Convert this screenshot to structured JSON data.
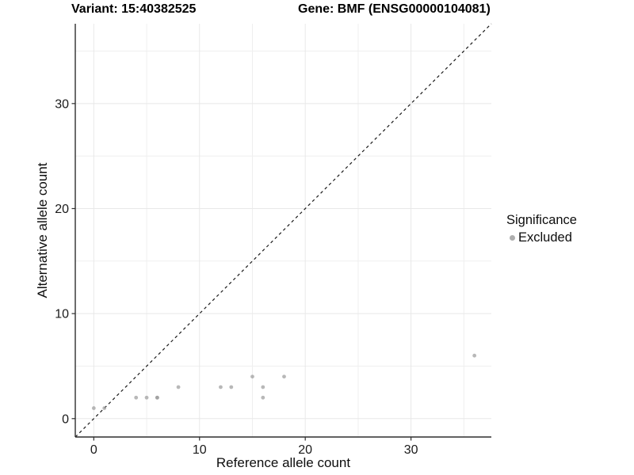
{
  "header": {
    "variant": "Variant: 15:40382525",
    "gene": "Gene: BMF (ENSG00000104081)"
  },
  "legend": {
    "title": "Significance",
    "items": [
      {
        "label": "Excluded",
        "color": "#aeaeae"
      }
    ]
  },
  "chart_data": {
    "type": "scatter",
    "xlabel": "Reference allele count",
    "ylabel": "Alternative allele count",
    "axis_domain": [
      -1.75,
      37.6
    ],
    "x_ticks": [
      0,
      10,
      20,
      30
    ],
    "y_ticks": [
      0,
      10,
      20,
      30
    ],
    "x_minor": [
      5,
      15,
      25,
      35
    ],
    "y_minor": [
      5,
      15,
      25,
      35
    ],
    "grid": true,
    "legend_position": "right",
    "series": [
      {
        "name": "Excluded",
        "points": [
          [
            0,
            1
          ],
          [
            1,
            1
          ],
          [
            4,
            2
          ],
          [
            5,
            2
          ],
          [
            6,
            2
          ],
          [
            6,
            2
          ],
          [
            8,
            3
          ],
          [
            12,
            3
          ],
          [
            13,
            3
          ],
          [
            15,
            4
          ],
          [
            16,
            2
          ],
          [
            16,
            3
          ],
          [
            18,
            4
          ],
          [
            36,
            6
          ]
        ]
      }
    ],
    "reference_line": {
      "slope": 1,
      "intercept": 0,
      "style": "dashed"
    },
    "colors": {
      "point": "#9a9a9a",
      "grid_major": "#e8e8e8",
      "grid_minor": "#efefef",
      "axis": "#2e2e2e",
      "tick_text": "#1a1a1a",
      "ref_line": "#1a1a1a"
    }
  }
}
